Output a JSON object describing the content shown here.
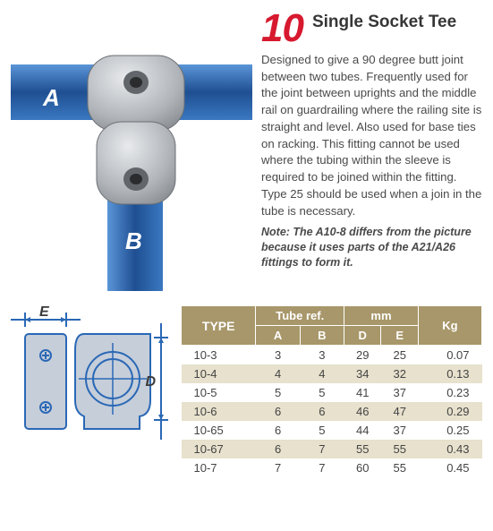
{
  "product_number": "10",
  "product_title": "Single Socket Tee",
  "description": "Designed to give a 90 degree butt joint between two tubes. Frequently used for the joint between uprights and the middle rail on guardrailing where the railing site is straight and level. Also used for base ties on racking. This fitting cannot be used where the tubing within the sleeve is required to be joined within the fitting. Type 25 should be used when a join in the tube is necessary.",
  "note": "Note: The A10-8 differs from the picture because it uses parts of the A21/A26 fittings to form it.",
  "photo": {
    "label_a": "A",
    "label_b": "B",
    "tube_color": "#2a68b5",
    "fitting_color": "#b5b9bd",
    "fitting_dark": "#878b90"
  },
  "diagram": {
    "label_d": "D",
    "label_e": "E",
    "line_color": "#2a68b5",
    "fill_color": "#c8d0d8",
    "stroke_color": "#2a68b5"
  },
  "table": {
    "header": {
      "type": "TYPE",
      "tube_ref": "Tube ref.",
      "mm": "mm",
      "kg": "Kg",
      "a": "A",
      "b": "B",
      "d": "D",
      "e": "E"
    },
    "colors": {
      "header_bg": "#a8976a",
      "header_fg": "#ffffff",
      "row_even_bg": "#e7e1cd",
      "row_odd_bg": "#ffffff"
    },
    "rows": [
      {
        "type": "10-3",
        "a": "3",
        "b": "3",
        "d": "29",
        "e": "25",
        "kg": "0.07"
      },
      {
        "type": "10-4",
        "a": "4",
        "b": "4",
        "d": "34",
        "e": "32",
        "kg": "0.13"
      },
      {
        "type": "10-5",
        "a": "5",
        "b": "5",
        "d": "41",
        "e": "37",
        "kg": "0.23"
      },
      {
        "type": "10-6",
        "a": "6",
        "b": "6",
        "d": "46",
        "e": "47",
        "kg": "0.29"
      },
      {
        "type": "10-65",
        "a": "6",
        "b": "5",
        "d": "44",
        "e": "37",
        "kg": "0.25"
      },
      {
        "type": "10-67",
        "a": "6",
        "b": "7",
        "d": "55",
        "e": "55",
        "kg": "0.43"
      },
      {
        "type": "10-7",
        "a": "7",
        "b": "7",
        "d": "60",
        "e": "55",
        "kg": "0.45"
      }
    ]
  }
}
